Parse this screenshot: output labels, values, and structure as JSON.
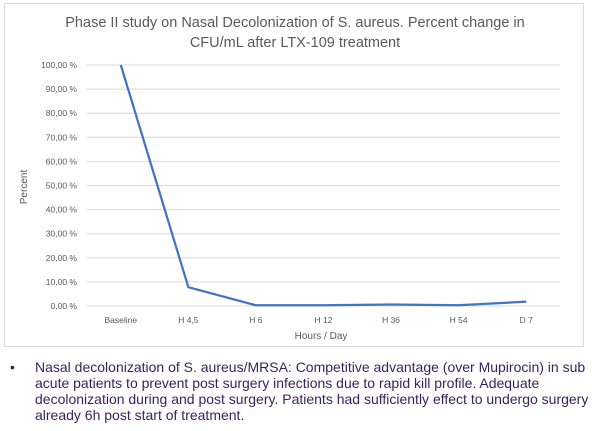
{
  "chart_data": {
    "type": "line",
    "title_lines": [
      "Phase II study on Nasal Decolonization of S. aureus. Percent change in",
      "CFU/mL after LTX-109 treatment"
    ],
    "xlabel": "Hours / Day",
    "ylabel": "Percent",
    "categories": [
      "Baseline",
      "H 4,5",
      "H 6",
      "H 12",
      "H 36",
      "H 54",
      "D 7"
    ],
    "values": [
      100.0,
      7.8,
      0.3,
      0.3,
      0.6,
      0.3,
      1.8
    ],
    "ylim": [
      0,
      100
    ],
    "yticks": [
      "0,00 %",
      "10,00 %",
      "20,00 %",
      "30,00 %",
      "40,00 %",
      "50,00 %",
      "60,00 %",
      "70,00 %",
      "80,00 %",
      "90,00 %",
      "100,00 %"
    ],
    "grid": true,
    "legend": "none",
    "line_color": "#4472c4"
  },
  "bullet": {
    "symbol": "•",
    "text": "Nasal decolonization of S. aureus/MRSA: Competitive advantage (over Mupirocin) in sub acute patients to prevent post surgery infections due to rapid kill profile. Adequate decolonization during and post surgery. Patients had sufficiently effect to undergo surgery already 6h post start of treatment."
  }
}
